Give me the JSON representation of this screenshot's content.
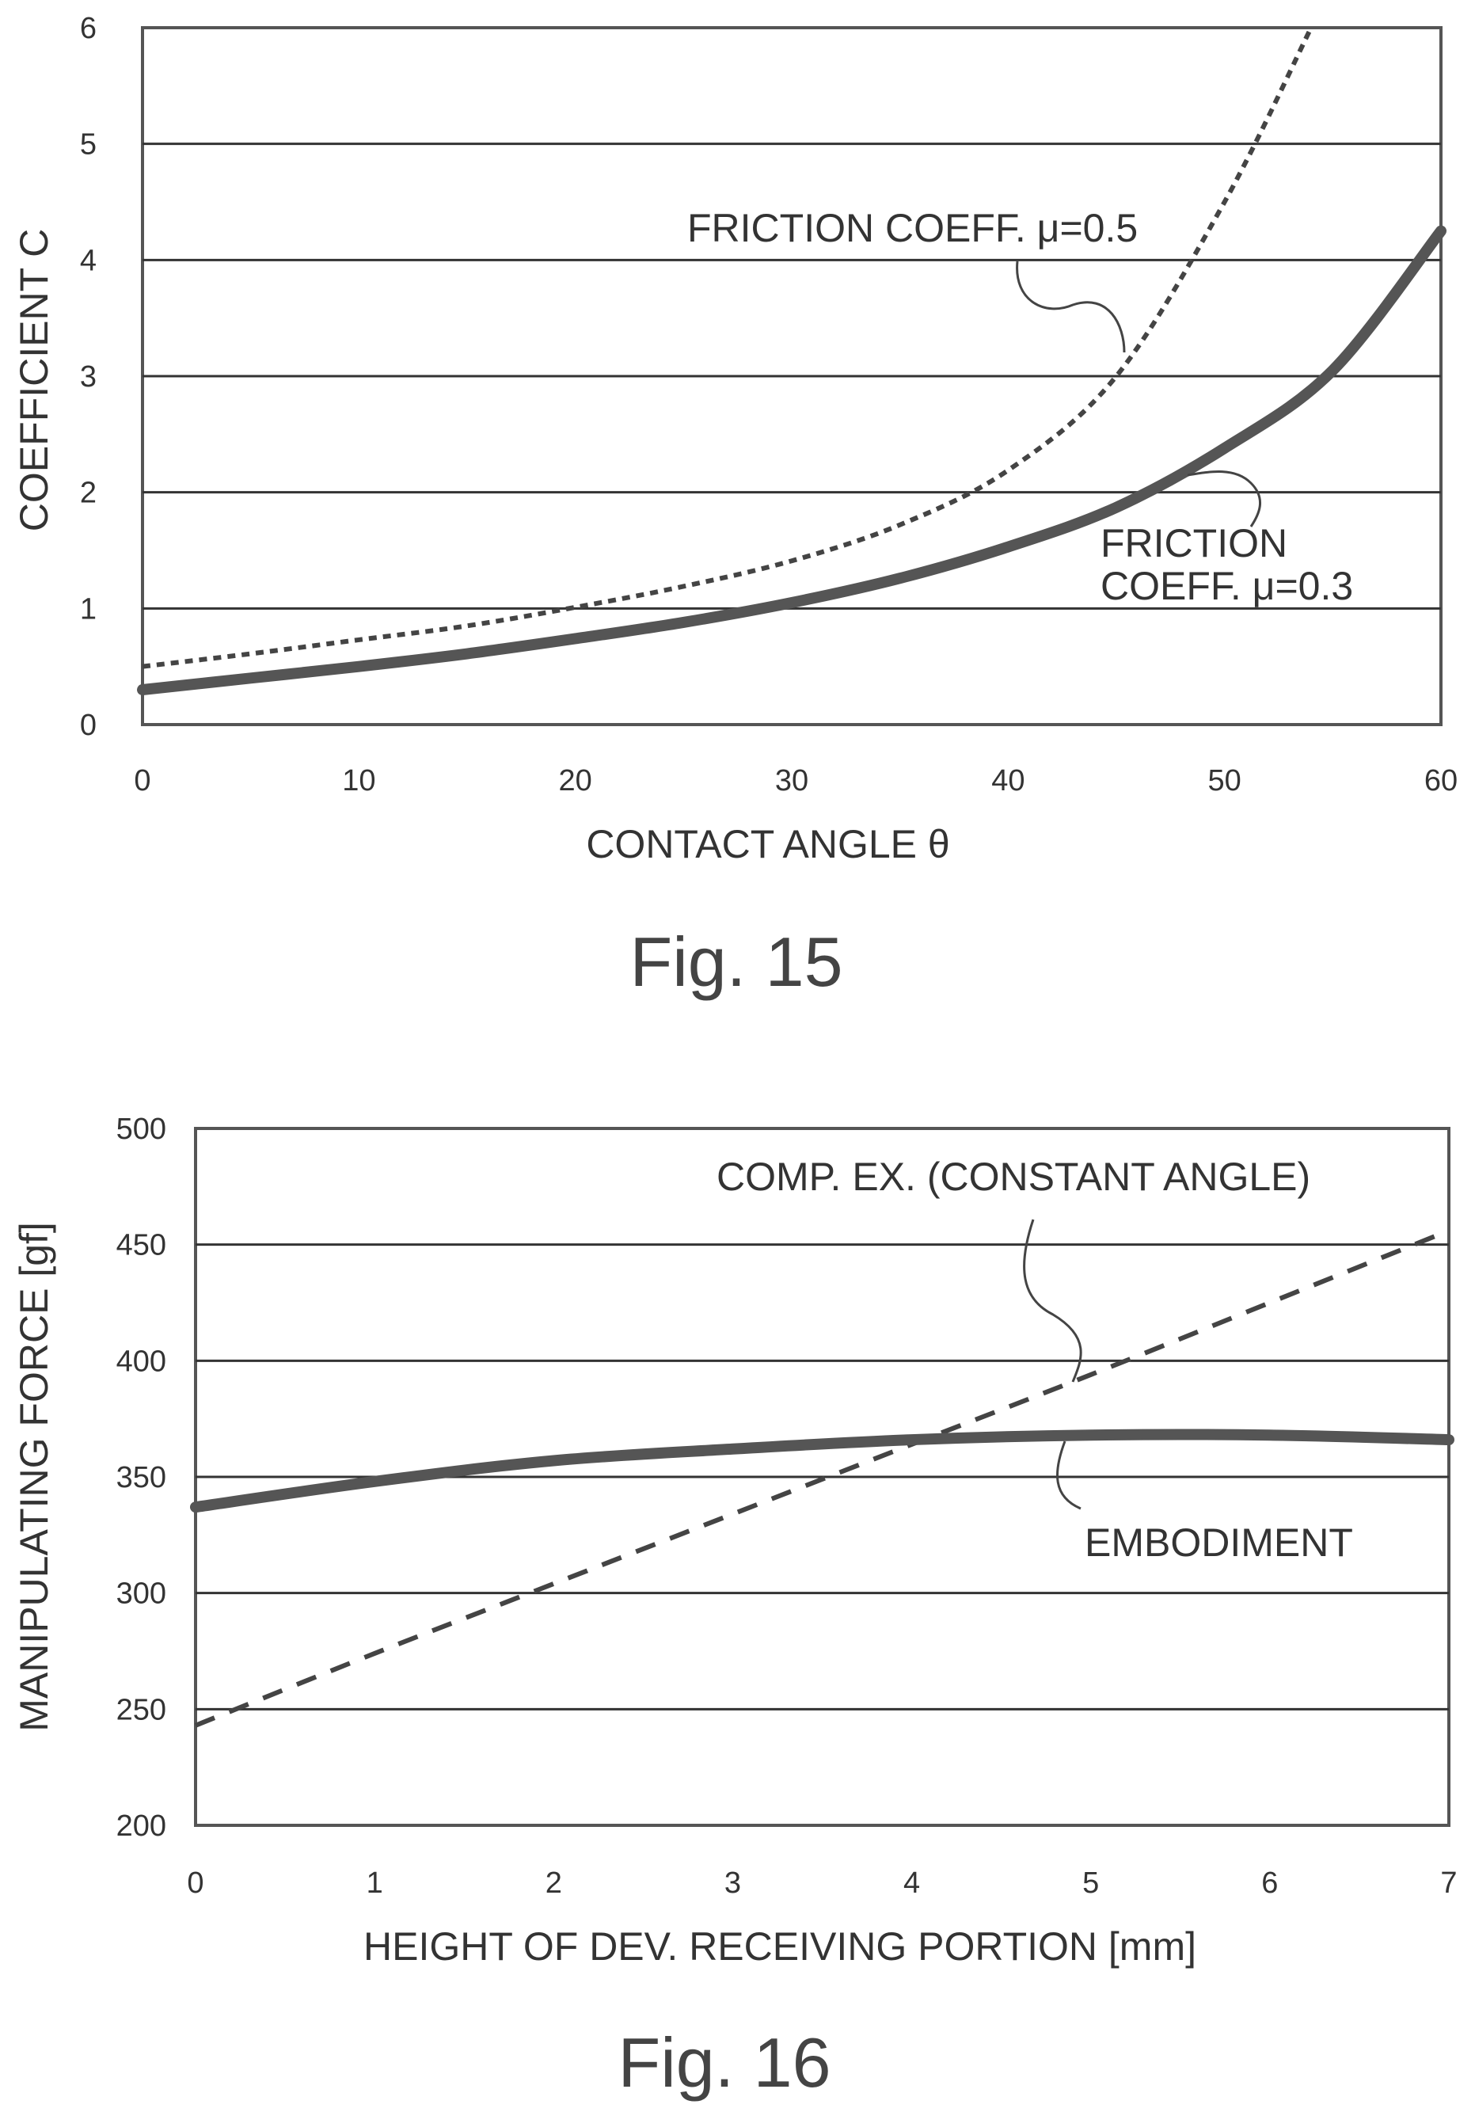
{
  "chart_data": [
    {
      "type": "line",
      "figure_label": "Fig. 15",
      "xlabel": "CONTACT ANGLE θ",
      "ylabel": "COEFFICIENT C",
      "xlim": [
        0,
        60
      ],
      "ylim": [
        0,
        6
      ],
      "x_ticks": [
        "0",
        "10",
        "20",
        "30",
        "40",
        "50",
        "60"
      ],
      "y_ticks": [
        "0",
        "1",
        "2",
        "3",
        "4",
        "5",
        "6"
      ],
      "grid": "horizontal",
      "series": [
        {
          "name": "FRICTION COEFF. μ=0.5",
          "style": "dashed",
          "x": [
            0,
            5,
            10,
            15,
            20,
            25,
            30,
            35,
            40,
            45,
            50,
            54
          ],
          "y": [
            0.5,
            0.61,
            0.73,
            0.85,
            1.01,
            1.19,
            1.41,
            1.72,
            2.19,
            3.0,
            4.5,
            6.0
          ]
        },
        {
          "name": "FRICTION COEFF. μ=0.3",
          "style": "solid",
          "x": [
            0,
            5,
            10,
            15,
            20,
            25,
            30,
            35,
            40,
            45,
            50,
            55,
            60
          ],
          "y": [
            0.3,
            0.4,
            0.5,
            0.61,
            0.74,
            0.88,
            1.05,
            1.26,
            1.53,
            1.87,
            2.38,
            3.05,
            4.25
          ]
        }
      ],
      "annotations": [
        {
          "lines": [
            "FRICTION COEFF. μ=0.5"
          ]
        },
        {
          "lines": [
            "FRICTION",
            "COEFF. μ=0.3"
          ]
        }
      ]
    },
    {
      "type": "line",
      "figure_label": "Fig. 16",
      "xlabel": "HEIGHT OF DEV. RECEIVING PORTION [mm]",
      "ylabel": "MANIPULATING FORCE [gf]",
      "xlim": [
        0,
        7
      ],
      "ylim": [
        200,
        500
      ],
      "x_ticks": [
        "0",
        "1",
        "2",
        "3",
        "4",
        "5",
        "6",
        "7"
      ],
      "y_ticks": [
        "200",
        "250",
        "300",
        "350",
        "400",
        "450",
        "500"
      ],
      "grid": "horizontal",
      "series": [
        {
          "name": "COMP. EX. (CONSTANT ANGLE)",
          "style": "dashed",
          "x": [
            0,
            1,
            2,
            3,
            4,
            5,
            6,
            7
          ],
          "y": [
            243,
            274,
            304,
            334,
            364,
            394,
            425,
            456
          ]
        },
        {
          "name": "EMBODIMENT",
          "style": "solid",
          "x": [
            0,
            1,
            2,
            3,
            4,
            5,
            6,
            7
          ],
          "y": [
            337,
            348,
            357,
            362,
            366,
            368,
            368,
            366
          ]
        }
      ],
      "annotations": [
        {
          "lines": [
            "COMP. EX. (CONSTANT ANGLE)"
          ]
        },
        {
          "lines": [
            "EMBODIMENT"
          ]
        }
      ]
    }
  ]
}
